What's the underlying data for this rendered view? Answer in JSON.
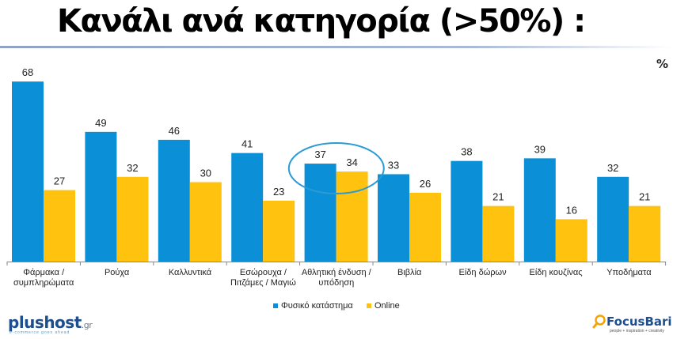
{
  "page": {
    "title": "Κανάλι ανά κατηγορία (>50%) :",
    "unit": "%"
  },
  "chart_data": {
    "type": "bar",
    "title": "Κανάλι ανά κατηγορία (>50%) :",
    "ylabel": "%",
    "ylim": [
      0,
      70
    ],
    "grid": false,
    "legend_position": "bottom-center",
    "categories": [
      [
        "Φάρμακα /",
        "συμπληρώματα"
      ],
      [
        "Ρούχα"
      ],
      [
        "Καλλυντικά"
      ],
      [
        "Εσώρουχα /",
        "Πιτζάμες / Μαγιώ"
      ],
      [
        "Αθλητική ένδυση /",
        "υπόδηση"
      ],
      [
        "Βιβλία"
      ],
      [
        "Είδη δώρων"
      ],
      [
        "Είδη κουζίνας"
      ],
      [
        "Υποδήματα"
      ]
    ],
    "series": [
      {
        "name": "Φυσικό κατάστημα",
        "color": "#0b8fd6",
        "values": [
          68,
          49,
          46,
          41,
          37,
          33,
          38,
          39,
          32
        ]
      },
      {
        "name": "Online",
        "color": "#ffc20e",
        "values": [
          27,
          32,
          30,
          23,
          34,
          26,
          21,
          16,
          21
        ]
      }
    ],
    "highlight": {
      "category_index": 4,
      "shape": "ellipse",
      "color": "#2a9bd4"
    }
  },
  "logos": {
    "left": {
      "name": "plushost",
      "suffix": ".gr",
      "tagline": "e-commerce goes ahead"
    },
    "right": {
      "name": "FocusBari",
      "tagline": "people + inspiration + creativity",
      "icon": "magnifier-icon"
    }
  }
}
